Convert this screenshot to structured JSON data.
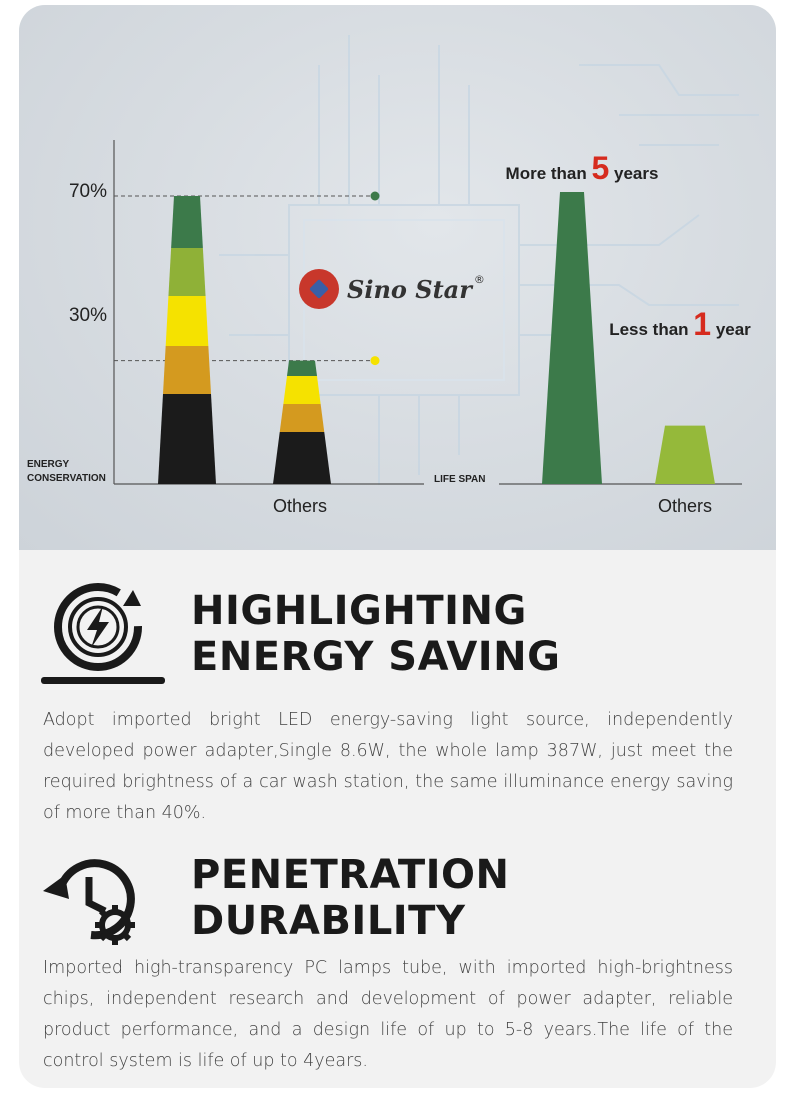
{
  "chart_data": [
    {
      "type": "bar",
      "ylabel": "ENERGY\nCONSERVATION",
      "yticks": [
        "70%",
        "30%"
      ],
      "ytick_values": [
        70,
        30
      ],
      "ylim": [
        0,
        100
      ],
      "categories": [
        "",
        "Others"
      ],
      "values": [
        70,
        30
      ],
      "segment_colors": [
        "#1b1b1b",
        "#d49a1f",
        "#f5e200",
        "#8fb137",
        "#3c7a4a"
      ],
      "logo": "Sino Star",
      "grid": false
    },
    {
      "type": "bar",
      "ylabel": "LIFE SPAN",
      "categories": [
        "",
        "Others"
      ],
      "values": [
        5,
        1
      ],
      "ylim": [
        0,
        6.3
      ],
      "annotations": [
        {
          "pre": "More than ",
          "num": "5",
          "post": " years"
        },
        {
          "pre": "Less than ",
          "num": "1",
          "post": " year"
        }
      ],
      "colors": [
        "#3c7a4a",
        "#95b93a"
      ],
      "accent": "#d62b1e",
      "grid": false
    }
  ],
  "sections": [
    {
      "icon": "energy-saving-icon",
      "title_line1": "HIGHLIGHTING",
      "title_line2": "ENERGY SAVING",
      "body": "Adopt imported bright LED energy-saving light source, independently developed power adapter,Single 8.6W, the whole lamp 387W, just meet the required brightness of a car wash station, the same illuminance energy saving of more than 40%."
    },
    {
      "icon": "durability-clock-gear-icon",
      "title_line1": "PENETRATION",
      "title_line2": "DURABILITY",
      "body": "Imported high-transparency PC lamps tube, with imported high-brightness chips, independent research  and development of power adapter, reliable product performance, and a design life of up to 5-8 years.The life of the control system is life of up to 4years."
    }
  ]
}
